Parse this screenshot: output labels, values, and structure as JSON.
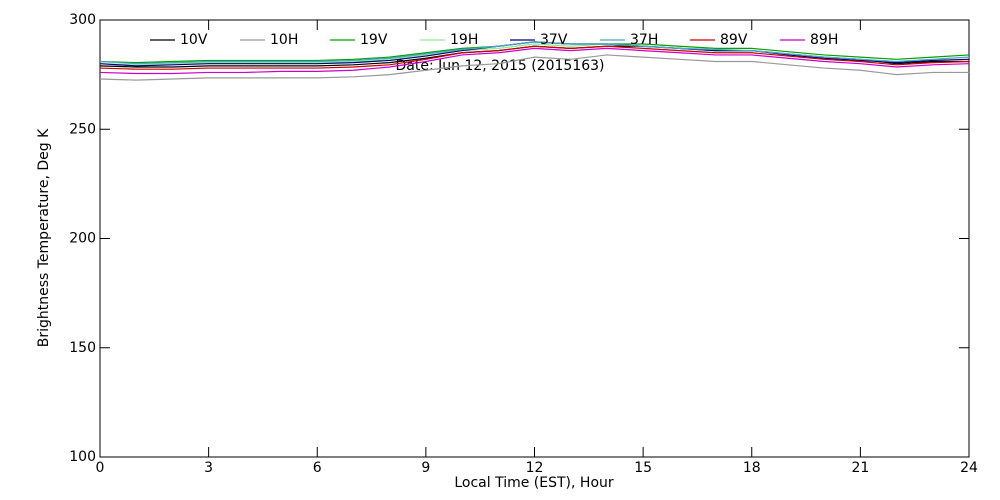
{
  "chart_data": {
    "type": "line",
    "subtitle": "Date: Jun 12, 2015 (2015163)",
    "x_label": "Local Time (EST), Hour",
    "y_label": "Brightness Temperature, Deg K",
    "x": [
      0,
      1,
      2,
      3,
      4,
      5,
      6,
      7,
      8,
      9,
      10,
      11,
      12,
      13,
      14,
      15,
      16,
      17,
      18,
      19,
      20,
      21,
      22,
      23,
      24
    ],
    "xlim": [
      0,
      24
    ],
    "xticks": [
      0,
      3,
      6,
      9,
      12,
      15,
      18,
      21,
      24
    ],
    "ylim": [
      100,
      300
    ],
    "yticks": [
      100,
      150,
      200,
      250,
      300
    ],
    "series": [
      {
        "name": "10V",
        "color": "#000000",
        "values": [
          279,
          278.5,
          278.5,
          279,
          279,
          279,
          279,
          279.5,
          280.5,
          282.5,
          285,
          286,
          288,
          287,
          288,
          288,
          287,
          286,
          286,
          284.5,
          283,
          282,
          280,
          281,
          281
        ]
      },
      {
        "name": "10H",
        "color": "#999999",
        "values": [
          273,
          272.5,
          273,
          273.5,
          273.5,
          273.5,
          273.5,
          274,
          275,
          277,
          279,
          280,
          283,
          282,
          284,
          283,
          282,
          281,
          281,
          279.5,
          278,
          277,
          275,
          276,
          276
        ]
      },
      {
        "name": "19V",
        "color": "#00a000",
        "values": [
          281,
          280.5,
          281,
          281.5,
          281.5,
          281.5,
          281.5,
          282,
          283,
          285,
          287,
          288,
          290,
          289,
          289,
          289,
          288,
          287,
          287,
          285.5,
          284,
          283,
          282,
          283,
          284
        ]
      },
      {
        "name": "19H",
        "color": "#90ee90",
        "values": [
          280,
          279.5,
          280,
          280.5,
          280.5,
          280.5,
          280.5,
          281,
          282,
          284,
          286,
          287,
          289,
          288,
          289,
          288,
          287,
          286,
          286,
          284.5,
          283,
          282,
          281,
          282,
          283
        ]
      },
      {
        "name": "37V",
        "color": "#000080",
        "values": [
          280,
          279,
          279.5,
          280,
          280,
          280,
          280,
          280.5,
          281.5,
          283.5,
          286,
          288,
          290,
          289,
          289,
          288,
          287,
          286,
          286,
          284,
          282.5,
          281.5,
          280.5,
          281.5,
          282
        ]
      },
      {
        "name": "37H",
        "color": "#4aa8c8",
        "values": [
          281,
          280,
          280.5,
          281,
          281,
          281,
          281,
          281.5,
          282.5,
          284.5,
          286.5,
          288,
          290,
          289,
          289,
          288,
          287,
          286.5,
          286,
          284.5,
          283,
          282,
          281,
          282,
          283
        ]
      },
      {
        "name": "89V",
        "color": "#cc0000",
        "values": [
          278,
          277.5,
          277.5,
          278,
          278,
          278,
          278,
          278.5,
          279.5,
          282,
          285,
          286,
          288,
          287,
          288,
          287,
          286,
          285,
          285,
          283.5,
          282,
          281,
          279.5,
          280.5,
          281
        ]
      },
      {
        "name": "89H",
        "color": "#cc00cc",
        "values": [
          276,
          275.5,
          275.5,
          276,
          276,
          276.5,
          276.5,
          277,
          278.5,
          281,
          284,
          285,
          287,
          286,
          287,
          286,
          285,
          284,
          284,
          282.5,
          281,
          280,
          278.5,
          279.5,
          280
        ]
      }
    ]
  }
}
